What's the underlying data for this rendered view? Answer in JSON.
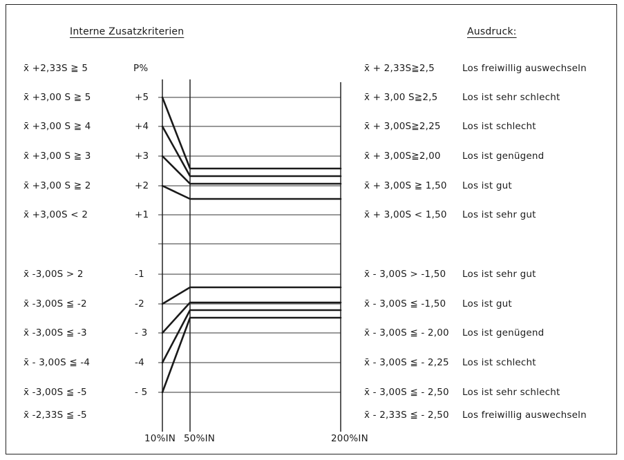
{
  "headers": {
    "left": "Interne Zusatzkriterien",
    "right": "Ausdruck:"
  },
  "y_axis_label": "P%",
  "left_criteria": [
    "x̄ +2,33S ≧ 5",
    "x̄ +3,00 S ≧ 5",
    "x̄ +3,00 S ≧ 4",
    "x̄ +3,00 S ≧ 3",
    "x̄ +3,00 S ≧ 2",
    "x̄ +3,00S < 2",
    "x̄ -3,00S > 2",
    "x̄ -3,00S ≦ -2",
    "x̄ -3,00S ≦ -3",
    "x̄ - 3,00S ≦ -4",
    "x̄ -3,00S ≦ -5",
    "x̄ -2,33S ≦ -5"
  ],
  "p_labels": [
    "+5",
    "+4",
    "+3",
    "+2",
    "+1",
    "-1",
    "-2",
    "- 3",
    "-4",
    "- 5"
  ],
  "right_expressions": [
    "x̄ + 2,33S≧2,5",
    "x̄ + 3,00 S≧2,5",
    "x̄ + 3,00S≧2,25",
    "x̄ + 3,00S≧2,00",
    "x̄ + 3,00S ≧ 1,50",
    "x̄ + 3,00S < 1,50",
    "x̄ - 3,00S > -1,50",
    "x̄ - 3,00S ≦ -1,50",
    "x̄ - 3,00S ≦ - 2,00",
    "x̄ - 3,00S ≦ - 2,25",
    "x̄ - 3,00S ≦ - 2,50",
    "x̄ - 2,33S ≦ - 2,50"
  ],
  "right_verdicts": [
    "Los freiwillig auswechseln",
    "Los ist sehr schlecht",
    "Los ist schlecht",
    "Los ist genügend",
    "Los ist gut",
    "Los ist sehr gut",
    "Los ist sehr gut",
    "Los ist gut",
    "Los ist genügend",
    "Los ist schlecht",
    "Los ist sehr schlecht",
    "Los freiwillig auswechseln"
  ],
  "x_axis_labels": [
    "10%IN",
    "50%IN",
    "200%IN"
  ],
  "curves": {
    "positive": [
      {
        "start": 5,
        "limit": 2.5
      },
      {
        "start": 4,
        "limit": 2.25
      },
      {
        "start": 3,
        "limit": 2.0
      },
      {
        "start": 2,
        "limit": 1.5
      }
    ],
    "negative": [
      {
        "start": -2,
        "limit": -1.5
      },
      {
        "start": -3,
        "limit": -2.0
      },
      {
        "start": -4,
        "limit": -2.25
      },
      {
        "start": -5,
        "limit": -2.5
      }
    ]
  }
}
